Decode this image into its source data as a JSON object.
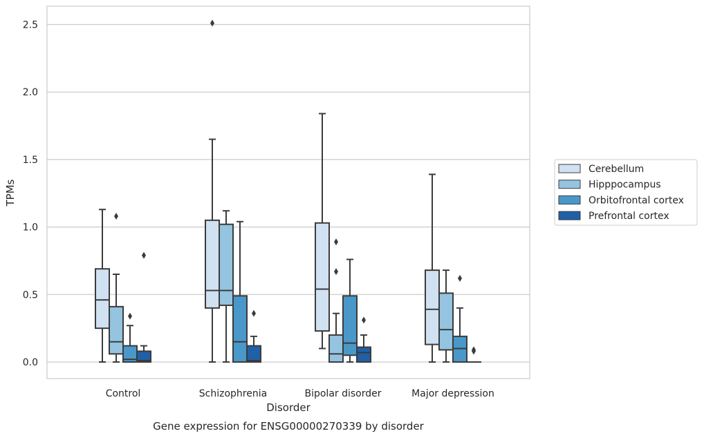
{
  "chart_data": {
    "type": "box",
    "caption": "Gene expression for ENSG00000270339 by disorder",
    "xlabel": "Disorder",
    "ylabel": "TPMs",
    "ylim": [
      -0.12,
      2.64
    ],
    "yticks": [
      0.0,
      0.5,
      1.0,
      1.5,
      2.0,
      2.5
    ],
    "ytick_labels": [
      "0.0",
      "0.5",
      "1.0",
      "1.5",
      "2.0",
      "2.5"
    ],
    "categories": [
      "Control",
      "Schizophrenia",
      "Bipolar disorder",
      "Major depression"
    ],
    "grid": "horizontal",
    "legend_position": "right",
    "series": [
      {
        "name": "Cerebellum",
        "color": "#d0e1f2",
        "boxes": [
          {
            "whisker_low": 0.0,
            "q1": 0.25,
            "median": 0.46,
            "q3": 0.69,
            "whisker_high": 1.13,
            "outliers": []
          },
          {
            "whisker_low": 0.0,
            "q1": 0.4,
            "median": 0.53,
            "q3": 1.05,
            "whisker_high": 1.65,
            "outliers": [
              2.51
            ]
          },
          {
            "whisker_low": 0.1,
            "q1": 0.23,
            "median": 0.54,
            "q3": 1.03,
            "whisker_high": 1.84,
            "outliers": []
          },
          {
            "whisker_low": 0.0,
            "q1": 0.13,
            "median": 0.39,
            "q3": 0.68,
            "whisker_high": 1.39,
            "outliers": []
          }
        ]
      },
      {
        "name": "Hipppocampus",
        "color": "#94c4df",
        "boxes": [
          {
            "whisker_low": 0.0,
            "q1": 0.06,
            "median": 0.15,
            "q3": 0.41,
            "whisker_high": 0.65,
            "outliers": [
              1.08
            ]
          },
          {
            "whisker_low": 0.0,
            "q1": 0.42,
            "median": 0.53,
            "q3": 1.02,
            "whisker_high": 1.12,
            "outliers": []
          },
          {
            "whisker_low": 0.0,
            "q1": 0.0,
            "median": 0.06,
            "q3": 0.2,
            "whisker_high": 0.36,
            "outliers": [
              0.67,
              0.89
            ]
          },
          {
            "whisker_low": 0.0,
            "q1": 0.09,
            "median": 0.24,
            "q3": 0.51,
            "whisker_high": 0.68,
            "outliers": []
          }
        ]
      },
      {
        "name": "Orbitofrontal cortex",
        "color": "#4a98c9",
        "boxes": [
          {
            "whisker_low": 0.0,
            "q1": 0.0,
            "median": 0.02,
            "q3": 0.12,
            "whisker_high": 0.27,
            "outliers": [
              0.34
            ]
          },
          {
            "whisker_low": 0.0,
            "q1": 0.0,
            "median": 0.15,
            "q3": 0.49,
            "whisker_high": 1.04,
            "outliers": []
          },
          {
            "whisker_low": 0.0,
            "q1": 0.05,
            "median": 0.14,
            "q3": 0.49,
            "whisker_high": 0.76,
            "outliers": []
          },
          {
            "whisker_low": 0.0,
            "q1": 0.0,
            "median": 0.1,
            "q3": 0.19,
            "whisker_high": 0.4,
            "outliers": [
              0.62
            ]
          }
        ]
      },
      {
        "name": "Prefrontal cortex",
        "color": "#2060a7",
        "boxes": [
          {
            "whisker_low": 0.0,
            "q1": 0.0,
            "median": 0.01,
            "q3": 0.08,
            "whisker_high": 0.12,
            "outliers": [
              0.79
            ]
          },
          {
            "whisker_low": 0.0,
            "q1": 0.0,
            "median": 0.01,
            "q3": 0.12,
            "whisker_high": 0.19,
            "outliers": [
              0.36
            ]
          },
          {
            "whisker_low": 0.0,
            "q1": 0.0,
            "median": 0.07,
            "q3": 0.11,
            "whisker_high": 0.2,
            "outliers": [
              0.31
            ]
          },
          {
            "whisker_low": 0.0,
            "q1": 0.0,
            "median": 0.0,
            "q3": 0.0,
            "whisker_high": 0.0,
            "outliers": [
              0.08,
              0.09
            ]
          }
        ]
      }
    ]
  }
}
